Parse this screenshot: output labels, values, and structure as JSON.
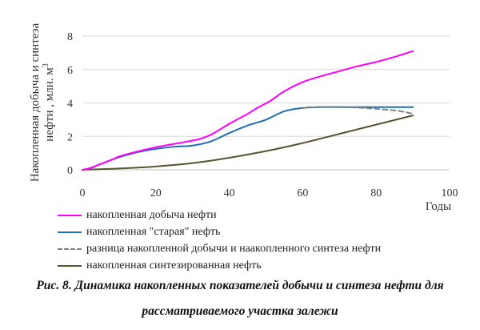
{
  "chart_data": {
    "type": "line",
    "xlabel": "Годы",
    "ylabel_line1": "Накопленная добыча и синтеза",
    "ylabel_line2_prefix": "нефти , млн. м",
    "ylabel_line2_sup": "3",
    "xlim": [
      0,
      100
    ],
    "ylim": [
      0,
      8
    ],
    "xticks": [
      "0",
      "20",
      "40",
      "60",
      "80",
      "100"
    ],
    "yticks": [
      "0",
      "2",
      "4",
      "6",
      "8"
    ],
    "grid": "horizontal",
    "legend_placement": "bottom",
    "series": [
      {
        "name": "накопленная добыча нефти",
        "color": "#ff00ff",
        "dash": "solid",
        "points": [
          [
            0,
            0
          ],
          [
            2,
            0.1
          ],
          [
            5,
            0.35
          ],
          [
            8,
            0.6
          ],
          [
            10,
            0.8
          ],
          [
            15,
            1.1
          ],
          [
            20,
            1.35
          ],
          [
            25,
            1.55
          ],
          [
            30,
            1.75
          ],
          [
            32,
            1.85
          ],
          [
            35,
            2.1
          ],
          [
            40,
            2.75
          ],
          [
            45,
            3.35
          ],
          [
            48,
            3.75
          ],
          [
            51,
            4.1
          ],
          [
            55,
            4.7
          ],
          [
            60,
            5.25
          ],
          [
            65,
            5.6
          ],
          [
            70,
            5.9
          ],
          [
            75,
            6.2
          ],
          [
            80,
            6.45
          ],
          [
            85,
            6.75
          ],
          [
            90,
            7.1
          ]
        ]
      },
      {
        "name": "накопленная \"старая\" нефть",
        "color": "#1f6eb5",
        "dash": "solid",
        "points": [
          [
            0,
            0
          ],
          [
            2,
            0.08
          ],
          [
            5,
            0.35
          ],
          [
            8,
            0.6
          ],
          [
            10,
            0.75
          ],
          [
            15,
            1.05
          ],
          [
            20,
            1.25
          ],
          [
            25,
            1.38
          ],
          [
            30,
            1.45
          ],
          [
            35,
            1.7
          ],
          [
            40,
            2.2
          ],
          [
            45,
            2.65
          ],
          [
            50,
            3.0
          ],
          [
            55,
            3.5
          ],
          [
            60,
            3.7
          ],
          [
            65,
            3.75
          ],
          [
            70,
            3.75
          ],
          [
            75,
            3.75
          ],
          [
            80,
            3.75
          ],
          [
            85,
            3.75
          ],
          [
            90,
            3.75
          ]
        ]
      },
      {
        "name": "разница накопленной добычи и наакопленного синтеза нефти",
        "color": "#808080",
        "dash": "dashed",
        "points": [
          [
            60,
            3.7
          ],
          [
            65,
            3.75
          ],
          [
            70,
            3.75
          ],
          [
            75,
            3.72
          ],
          [
            80,
            3.65
          ],
          [
            85,
            3.55
          ],
          [
            88,
            3.45
          ],
          [
            90,
            3.35
          ]
        ]
      },
      {
        "name": "накопленная синтезированная нефть",
        "color": "#5a5230",
        "dash": "solid",
        "points": [
          [
            0,
            0
          ],
          [
            10,
            0.08
          ],
          [
            20,
            0.2
          ],
          [
            30,
            0.4
          ],
          [
            40,
            0.72
          ],
          [
            50,
            1.12
          ],
          [
            60,
            1.6
          ],
          [
            70,
            2.15
          ],
          [
            80,
            2.7
          ],
          [
            90,
            3.25
          ]
        ]
      }
    ]
  },
  "caption": {
    "line1": "Рис. 8. Динамика накопленных показателей добычи и синтеза нефти для",
    "line2": "рассматриваемого участка залежи"
  }
}
